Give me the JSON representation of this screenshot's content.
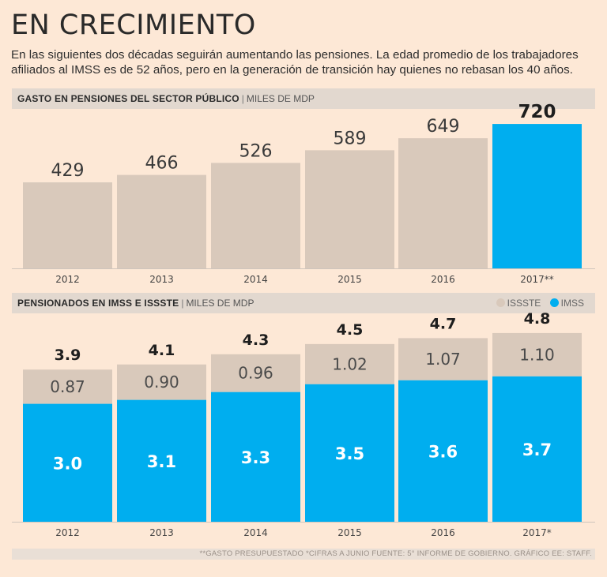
{
  "header": {
    "title": "EN CRECIMIENTO",
    "subtitle": "En las siguientes dos décadas seguirán aumentando las pensiones. La edad promedio de los trabajadores afiliados al IMSS es de 52 años, pero en la generación de transición hay quienes no rebasan los 40 años."
  },
  "section1": {
    "title": "GASTO EN PENSIONES DEL SECTOR PÚBLICO",
    "sep": "|",
    "unit": "MILES DE MDP"
  },
  "section2": {
    "title": "PENSIONADOS EN IMSS E ISSSTE",
    "sep": "|",
    "unit": "MILES DE MDP",
    "legend": [
      {
        "label": "ISSSTE",
        "color": "#d9c9bb"
      },
      {
        "label": "IMSS",
        "color": "#00aeef"
      }
    ]
  },
  "footnote": "**GASTO PRESUPUESTADO *CIFRAS A JUNIO  FUENTE: 5° INFORME DE GOBIERNO.  GRÁFICO EE: STAFF.",
  "colors": {
    "beige": "#d9c9bb",
    "blue": "#00aeef",
    "white": "#ffffff"
  },
  "chart_data": [
    {
      "type": "bar",
      "title": "GASTO EN PENSIONES DEL SECTOR PÚBLICO",
      "ylabel": "MILES DE MDP",
      "categories": [
        "2012",
        "2013",
        "2014",
        "2015",
        "2016",
        "2017**"
      ],
      "values": [
        429,
        466,
        526,
        589,
        649,
        720
      ],
      "value_labels": [
        "429",
        "466",
        "526",
        "589",
        "649",
        "720"
      ],
      "highlight_index": 5,
      "ylim": [
        0,
        740
      ]
    },
    {
      "type": "bar",
      "stacked": true,
      "title": "PENSIONADOS EN IMSS E ISSSTE",
      "ylabel": "MILES DE MDP",
      "categories": [
        "2012",
        "2013",
        "2014",
        "2015",
        "2016",
        "2017*"
      ],
      "series": [
        {
          "name": "IMSS",
          "values": [
            3.0,
            3.1,
            3.3,
            3.5,
            3.6,
            3.7
          ],
          "labels": [
            "3.0",
            "3.1",
            "3.3",
            "3.5",
            "3.6",
            "3.7"
          ]
        },
        {
          "name": "ISSSTE",
          "values": [
            0.87,
            0.9,
            0.96,
            1.02,
            1.07,
            1.1
          ],
          "labels": [
            "0.87",
            "0.90",
            "0.96",
            "1.02",
            "1.07",
            "1.10"
          ]
        }
      ],
      "totals": [
        "3.9",
        "4.1",
        "4.3",
        "4.5",
        "4.7",
        "4.8"
      ],
      "ylim": [
        0,
        5.3
      ]
    }
  ]
}
